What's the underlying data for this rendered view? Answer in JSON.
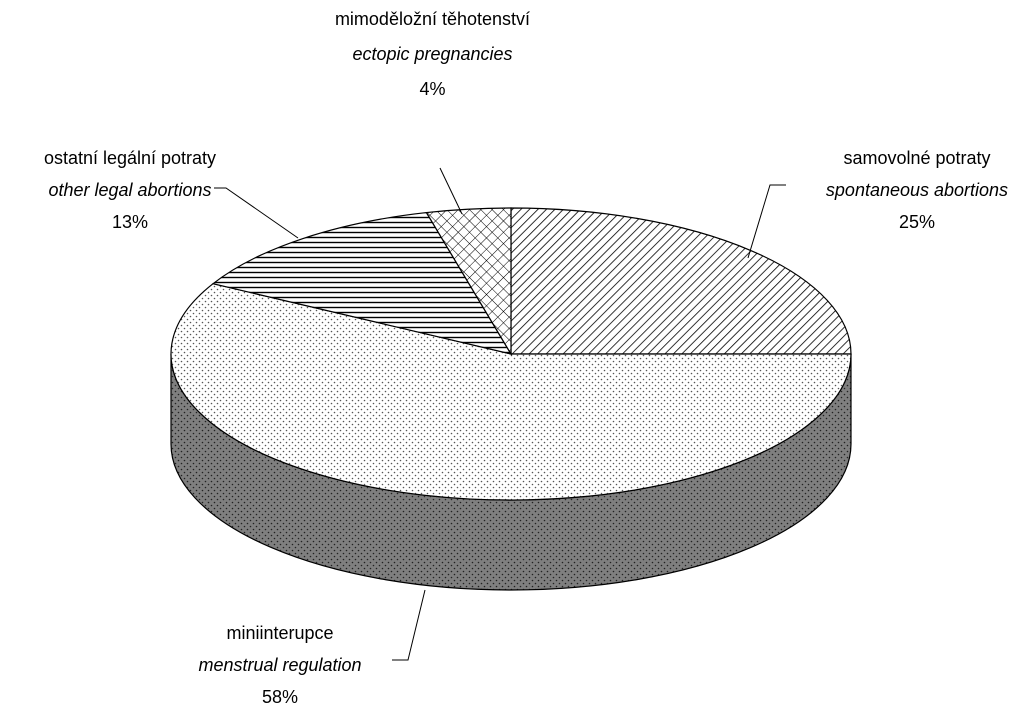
{
  "chart_data": {
    "type": "pie3d",
    "categories": [
      "samovolné potraty",
      "miniinterupce",
      "ostatní legální potraty",
      "mimoděložní těhotenství"
    ],
    "categories_en": [
      "spontaneous abortions",
      "menstrual regulation",
      "other legal abortions",
      "ectopic pregnancies"
    ],
    "values": [
      25,
      58,
      13,
      4
    ],
    "value_labels": [
      "25%",
      "58%",
      "13%",
      "4%"
    ]
  }
}
